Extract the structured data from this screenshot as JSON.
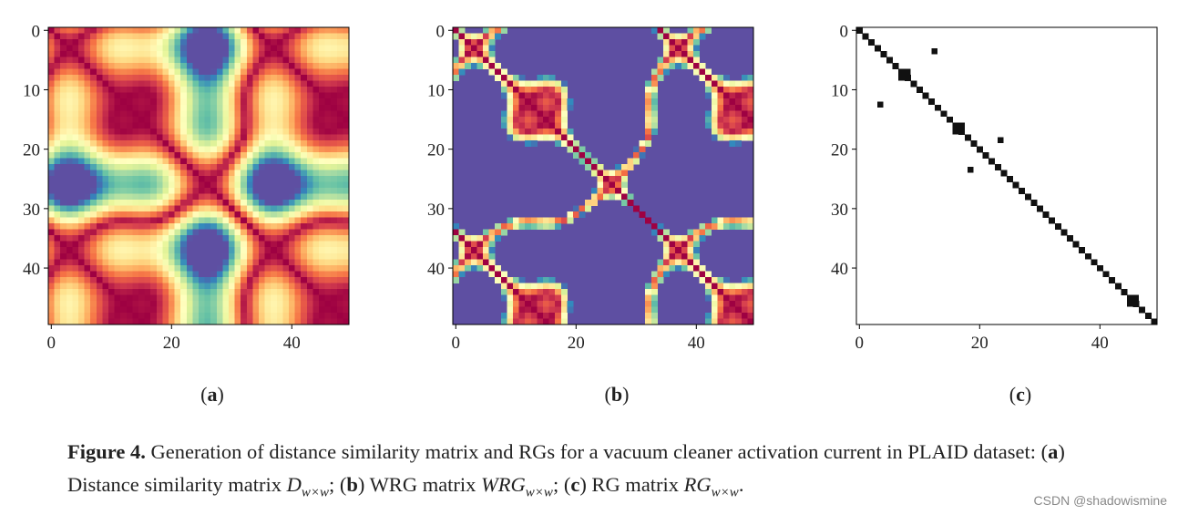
{
  "figures": [
    {
      "subcaption": [
        "(",
        "a",
        ")"
      ],
      "xlim": [
        -0.5,
        49.5
      ],
      "ylim": [
        -0.5,
        49.5
      ],
      "xticks": [
        0,
        20,
        40
      ],
      "yticks": [
        0,
        10,
        20,
        30,
        40
      ]
    },
    {
      "subcaption": [
        "(",
        "b",
        ")"
      ],
      "xlim": [
        -0.5,
        49.5
      ],
      "ylim": [
        -0.5,
        49.5
      ],
      "xticks": [
        0,
        20,
        40
      ],
      "yticks": [
        0,
        10,
        20,
        30,
        40
      ]
    },
    {
      "subcaption": [
        "(",
        "c",
        ")"
      ],
      "xlim": [
        -0.5,
        49.5
      ],
      "ylim": [
        -0.5,
        49.5
      ],
      "xticks": [
        0,
        20,
        40
      ],
      "yticks": [
        0,
        10,
        20,
        30,
        40
      ]
    }
  ],
  "caption": [
    {
      "text": "Figure 4.",
      "style": "bold"
    },
    {
      "text": " Generation of distance similarity matrix and RGs for a vacuum cleaner activation current in PLAID dataset: (",
      "style": "normal"
    },
    {
      "text": "a",
      "style": "bold"
    },
    {
      "text": ") Distance similarity matrix ",
      "style": "normal"
    },
    {
      "text": "D",
      "style": "italic"
    },
    {
      "text": "w×w",
      "style": "sub"
    },
    {
      "text": "; (",
      "style": "normal"
    },
    {
      "text": "b",
      "style": "bold"
    },
    {
      "text": ") WRG matrix ",
      "style": "normal"
    },
    {
      "text": "WRG",
      "style": "italic"
    },
    {
      "text": "w×w",
      "style": "sub"
    },
    {
      "text": "; (",
      "style": "normal"
    },
    {
      "text": "c",
      "style": "bold"
    },
    {
      "text": ") RG matrix ",
      "style": "normal"
    },
    {
      "text": "RG",
      "style": "italic"
    },
    {
      "text": "w×w",
      "style": "sub"
    },
    {
      "text": ".",
      "style": "normal"
    }
  ],
  "watermark": "CSDN @shadowismine"
}
